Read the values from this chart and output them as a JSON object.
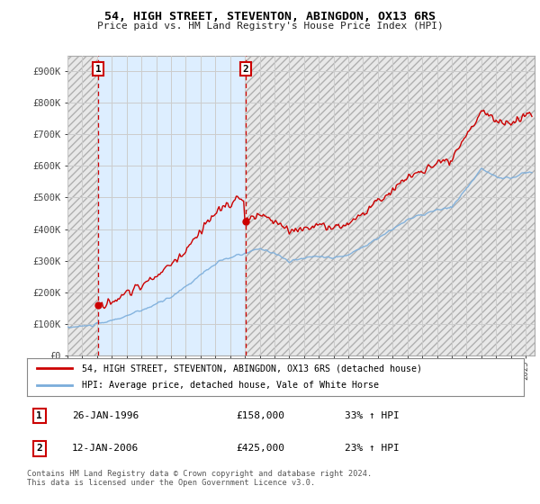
{
  "title": "54, HIGH STREET, STEVENTON, ABINGDON, OX13 6RS",
  "subtitle": "Price paid vs. HM Land Registry's House Price Index (HPI)",
  "legend_line1": "54, HIGH STREET, STEVENTON, ABINGDON, OX13 6RS (detached house)",
  "legend_line2": "HPI: Average price, detached house, Vale of White Horse",
  "transaction1_label": "1",
  "transaction1_date": "26-JAN-1996",
  "transaction1_price": "£158,000",
  "transaction1_hpi": "33% ↑ HPI",
  "transaction1_year": 1996.08,
  "transaction1_value": 158000,
  "transaction2_label": "2",
  "transaction2_date": "12-JAN-2006",
  "transaction2_price": "£425,000",
  "transaction2_hpi": "23% ↑ HPI",
  "transaction2_year": 2006.04,
  "transaction2_value": 425000,
  "footer": "Contains HM Land Registry data © Crown copyright and database right 2024.\nThis data is licensed under the Open Government Licence v3.0.",
  "price_color": "#cc0000",
  "hpi_color": "#7aaddb",
  "ylim": [
    0,
    950000
  ],
  "yticks": [
    0,
    100000,
    200000,
    300000,
    400000,
    500000,
    600000,
    700000,
    800000,
    900000
  ],
  "ytick_labels": [
    "£0",
    "£100K",
    "£200K",
    "£300K",
    "£400K",
    "£500K",
    "£600K",
    "£700K",
    "£800K",
    "£900K"
  ],
  "xlim_start": 1994.0,
  "xlim_end": 2025.6,
  "background_color": "#ffffff",
  "grid_color": "#cccccc",
  "hatch_bg_color": "#e8e8e8",
  "active_bg_color": "#ddeeff"
}
